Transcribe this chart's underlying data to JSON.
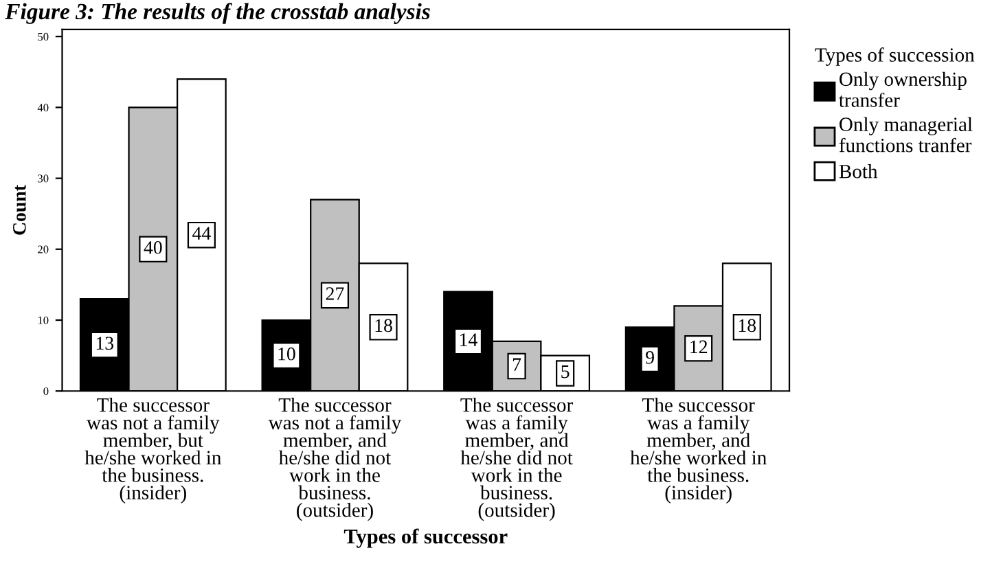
{
  "chart_data": {
    "type": "bar",
    "title": "Figure 3: The results of the crosstab analysis",
    "xlabel": "Types of successor",
    "ylabel": "Count",
    "legend_title": "Types of succession",
    "categories": [
      "The successor\nwas not a family\nmember, but\nhe/she worked in\nthe business.\n(insider)",
      "The successor\nwas not a family\nmember, and\nhe/she did not\nwork in the\nbusiness.\n(outsider)",
      "The successor\nwas a family\nmember, and\nhe/she did not\nwork in the\nbusiness.\n(outsider)",
      "The successor\nwas a family\nmember, and\nhe/she worked in\nthe business.\n(insider)"
    ],
    "series": [
      {
        "name": "Only ownership\ntransfer",
        "color": "#000000",
        "values": [
          13,
          10,
          14,
          9
        ]
      },
      {
        "name": "Only managerial\nfunctions tranfer",
        "color": "#c0c0c0",
        "values": [
          40,
          27,
          7,
          12
        ]
      },
      {
        "name": "Both",
        "color": "#ffffff",
        "values": [
          44,
          18,
          5,
          18
        ]
      }
    ],
    "ylim": [
      0,
      51
    ],
    "yticks": [
      0,
      10,
      20,
      30,
      40,
      50
    ],
    "data_labels": true,
    "legend": "right",
    "grid": false
  }
}
